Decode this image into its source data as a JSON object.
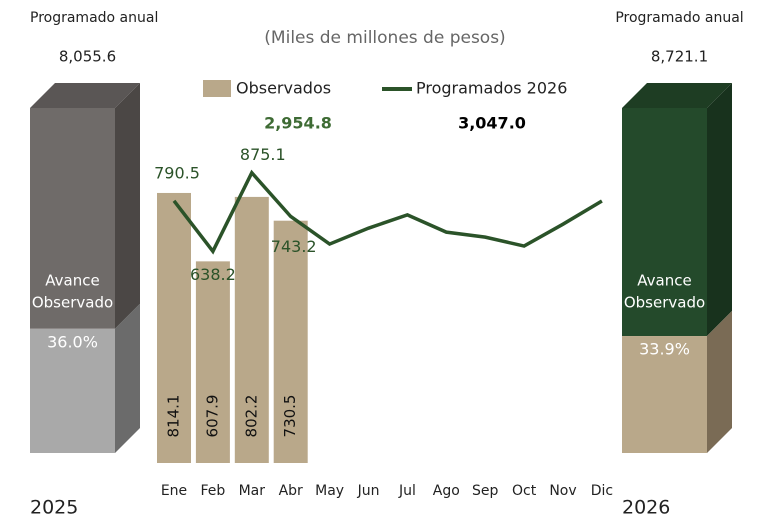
{
  "chart_data": [
    {
      "type": "combo",
      "subtitle": "(Miles de millones de pesos)",
      "categories": [
        "Ene",
        "Feb",
        "Mar",
        "Abr",
        "May",
        "Jun",
        "Jul",
        "Ago",
        "Sep",
        "Oct",
        "Nov",
        "Dic"
      ],
      "ylim": [
        0,
        1000
      ],
      "series": [
        {
          "name": "Observados",
          "kind": "bar",
          "color": "#b9a88a",
          "values": [
            814.1,
            607.9,
            802.2,
            730.5,
            null,
            null,
            null,
            null,
            null,
            null,
            null,
            null
          ],
          "total_label": "2,954.8",
          "total_color": "#3e6b34"
        },
        {
          "name": "Programados  2026",
          "kind": "line",
          "color": "#2b5329",
          "values": [
            790.5,
            638.2,
            875.1,
            743.2,
            660,
            708,
            748,
            696,
            681,
            654,
            720,
            790
          ],
          "labeled": 4,
          "total_label": "3,047.0",
          "total_color": "#000000"
        }
      ]
    },
    {
      "type": "bar3d",
      "title": "Programado anual",
      "total_label": "8,055.6",
      "year": "2025",
      "inner_label": [
        "Avance",
        "Observado"
      ],
      "percent": 36.0,
      "percent_label": "36.0%",
      "colors": {
        "top": "#6f6b69",
        "top_side": "#4b4745",
        "bottom": "#a9a9a9",
        "bottom_side": "#6b6b6b",
        "cap": "#5a5655"
      }
    },
    {
      "type": "bar3d",
      "title": "Programado anual",
      "total_label": "8,721.1",
      "year": "2026",
      "inner_label": [
        "Avance",
        "Observado"
      ],
      "percent": 33.9,
      "percent_label": "33.9%",
      "colors": {
        "top": "#244a2b",
        "top_side": "#18321d",
        "bottom": "#b9a88a",
        "bottom_side": "#7a6b55",
        "cap": "#1e3d23"
      }
    }
  ]
}
